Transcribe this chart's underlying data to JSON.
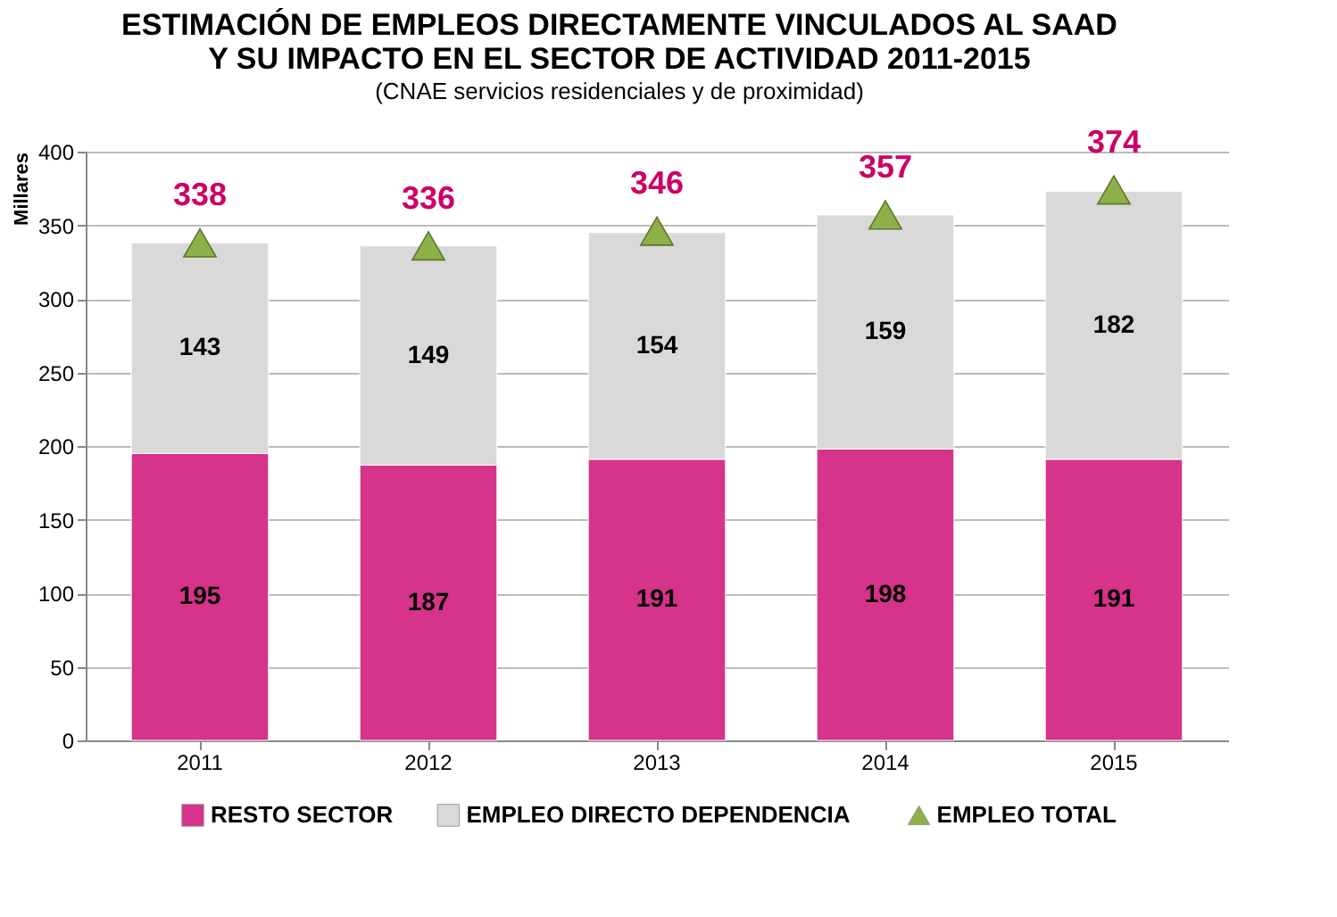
{
  "chart_data": {
    "type": "bar",
    "title": "ESTIMACIÓN DE EMPLEOS DIRECTAMENTE VINCULADOS AL SAAD Y SU IMPACTO EN EL SECTOR DE ACTIVIDAD 2011-2015",
    "subtitle": "(CNAE servicios residenciales y de proximidad)",
    "ylabel": "Millares",
    "categories": [
      "2011",
      "2012",
      "2013",
      "2014",
      "2015"
    ],
    "stacked": true,
    "series": [
      {
        "name": "RESTO SECTOR",
        "color": "#d6338a",
        "values": [
          195,
          187,
          191,
          198,
          191
        ]
      },
      {
        "name": "EMPLEO DIRECTO DEPENDENCIA",
        "color": "#d9d9d9",
        "values": [
          143,
          149,
          154,
          159,
          182
        ]
      },
      {
        "name": "EMPLEO TOTAL",
        "type": "scatter",
        "marker": "triangle",
        "color": "#8db04a",
        "values": [
          338,
          336,
          346,
          357,
          374
        ]
      }
    ],
    "ylim": [
      0,
      400
    ],
    "yticks": [
      0,
      50,
      100,
      150,
      200,
      250,
      300,
      350,
      400
    ],
    "grid": "y",
    "legend": "bottom",
    "data_labels": true
  }
}
